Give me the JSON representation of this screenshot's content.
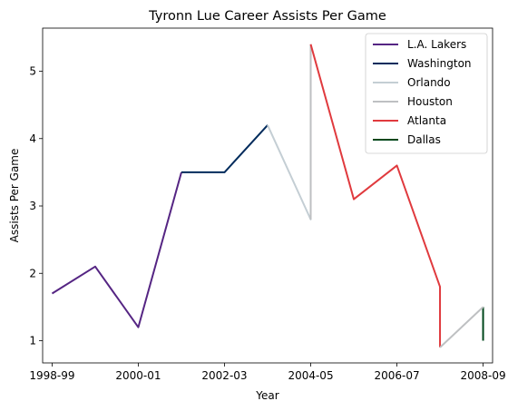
{
  "chart_data": {
    "type": "line",
    "title": "Tyronn Lue Career Assists Per Game",
    "xlabel": "Year",
    "ylabel": "Assists Per Game",
    "x_ticks": [
      "1998-99",
      "2000-01",
      "2002-03",
      "2004-05",
      "2006-07",
      "2008-09"
    ],
    "y_ticks": [
      "1",
      "2",
      "3",
      "4",
      "5"
    ],
    "xlim": [
      -0.22,
      10.22
    ],
    "ylim": [
      0.67,
      5.64
    ],
    "grid": false,
    "legend_position": "top-right",
    "series": [
      {
        "name": "L.A. Lakers",
        "color": "#552583",
        "points": [
          [
            0,
            1.7
          ],
          [
            1,
            2.1
          ],
          [
            2,
            1.2
          ],
          [
            3,
            3.5
          ]
        ]
      },
      {
        "name": "Washington",
        "color": "#002B5C",
        "points": [
          [
            3,
            3.5
          ],
          [
            4,
            3.5
          ],
          [
            5,
            4.2
          ]
        ]
      },
      {
        "name": "Orlando",
        "color": "#C4CED4",
        "points": [
          [
            5,
            4.2
          ],
          [
            6,
            2.8
          ],
          [
            6,
            5.4
          ]
        ]
      },
      {
        "name": "Houston",
        "color": "#BEC0C2",
        "points": [
          [
            6,
            5.4
          ],
          [
            6,
            2.8
          ]
        ]
      },
      {
        "name": "Atlanta",
        "color": "#E03A3E",
        "points": [
          [
            6,
            5.4
          ],
          [
            7,
            3.1
          ],
          [
            8,
            3.6
          ],
          [
            9,
            1.8
          ],
          [
            9,
            0.9
          ]
        ]
      },
      {
        "name": "Dallas",
        "color": "#00471B",
        "points": [
          [
            10,
            1.0
          ],
          [
            10,
            1.5
          ]
        ]
      },
      {
        "name": "",
        "color": "#BEC0C2",
        "points": [
          [
            9,
            0.9
          ],
          [
            10,
            1.5
          ]
        ]
      }
    ]
  }
}
